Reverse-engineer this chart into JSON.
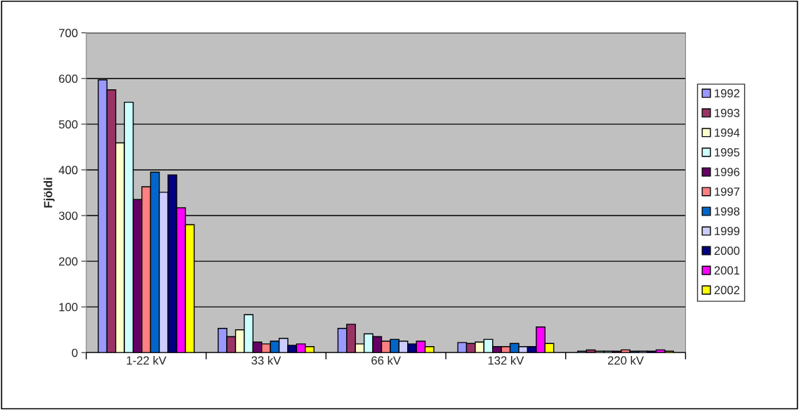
{
  "chart_data": {
    "type": "bar",
    "ylabel": "Fjöldi",
    "categories": [
      "1-22 kV",
      "33 kV",
      "66 kV",
      "132 kV",
      "220 kV"
    ],
    "series": [
      {
        "name": "1992",
        "color": "#9999ff",
        "values": [
          597,
          53,
          53,
          22,
          3
        ]
      },
      {
        "name": "1993",
        "color": "#993366",
        "values": [
          575,
          35,
          62,
          20,
          6
        ]
      },
      {
        "name": "1994",
        "color": "#ffffcc",
        "values": [
          459,
          50,
          19,
          23,
          3
        ]
      },
      {
        "name": "1995",
        "color": "#ccffff",
        "values": [
          548,
          83,
          41,
          29,
          3
        ]
      },
      {
        "name": "1996",
        "color": "#660066",
        "values": [
          335,
          23,
          35,
          13,
          3
        ]
      },
      {
        "name": "1997",
        "color": "#ff8080",
        "values": [
          363,
          19,
          25,
          13,
          6
        ]
      },
      {
        "name": "1998",
        "color": "#0066cc",
        "values": [
          395,
          25,
          29,
          20,
          3
        ]
      },
      {
        "name": "1999",
        "color": "#ccccff",
        "values": [
          351,
          31,
          25,
          13,
          3
        ]
      },
      {
        "name": "2000",
        "color": "#000080",
        "values": [
          389,
          16,
          19,
          13,
          3
        ]
      },
      {
        "name": "2001",
        "color": "#ff00ff",
        "values": [
          317,
          19,
          25,
          56,
          6
        ]
      },
      {
        "name": "2002",
        "color": "#ffff00",
        "values": [
          280,
          13,
          13,
          20,
          3
        ]
      }
    ],
    "ylim": [
      0,
      700
    ],
    "yticks": [
      0,
      100,
      200,
      300,
      400,
      500,
      600,
      700
    ],
    "grid": "y",
    "legend": "right"
  }
}
